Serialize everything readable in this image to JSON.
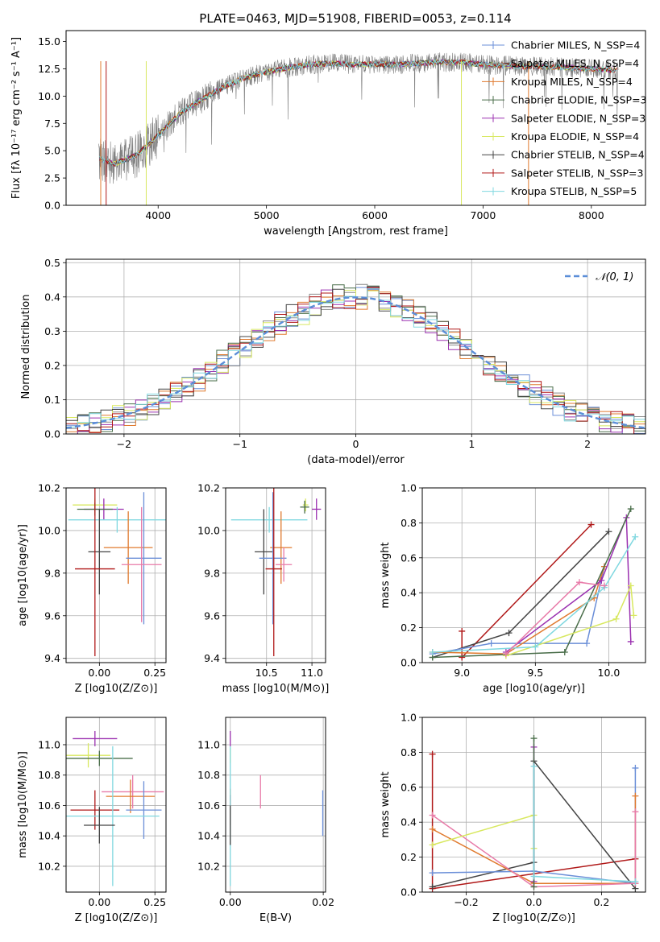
{
  "title": "PLATE=0463, MJD=51908, FIBERID=0053, z=0.114",
  "colors": {
    "chabrier_miles": "#6b8fd8",
    "salpeter_miles": "#8b8b8b",
    "kroupa_miles": "#e07a2e",
    "chabrier_elodie": "#4a6e4a",
    "salpeter_elodie": "#9b30b0",
    "kroupa_elodie": "#d8e860",
    "chabrier_stelib": "#444444",
    "salpeter_stelib": "#b01818",
    "kroupa_stelib": "#80d8e0",
    "pink": "#e87aa8",
    "normal_curve": "#5b8ed8",
    "observed_spectrum": "#7f7f7f"
  },
  "chart_data": [
    {
      "type": "line",
      "panel": "spectrum",
      "title": "PLATE=0463, MJD=51908, FIBERID=0053, z=0.114",
      "xlabel": "wavelength [Angstrom, rest frame]",
      "ylabel": "Flux [fλ 10⁻¹⁷ erg cm⁻² s⁻¹ A⁻¹]",
      "xlim": [
        3150,
        8500
      ],
      "ylim": [
        0,
        16
      ],
      "xticks": [
        4000,
        5000,
        6000,
        7000,
        8000
      ],
      "yticks": [
        "0.0",
        "2.5",
        "5.0",
        "7.5",
        "10.0",
        "12.5",
        "15.0"
      ],
      "legend_position": "top-right",
      "continuum": {
        "x": [
          3450,
          3600,
          3800,
          4000,
          4200,
          4400,
          4600,
          4800,
          5000,
          5200,
          5400,
          5600,
          5800,
          6000,
          6200,
          6400,
          6600,
          6800,
          7000,
          7200,
          7400,
          7600,
          7800,
          8000,
          8200
        ],
        "y": [
          4.3,
          3.8,
          4.6,
          6.4,
          8.4,
          9.7,
          10.8,
          11.7,
          12.2,
          12.6,
          12.9,
          13.0,
          12.9,
          12.9,
          12.9,
          13.0,
          13.1,
          13.1,
          12.9,
          12.8,
          12.7,
          12.7,
          12.6,
          12.5,
          12.4
        ]
      },
      "series": [
        {
          "name": "Chabrier MILES, N_SSP=4",
          "color_key": "chabrier_miles"
        },
        {
          "name": "Salpeter MILES, N_SSP=4",
          "color_key": "salpeter_miles"
        },
        {
          "name": "Kroupa MILES, N_SSP=4",
          "color_key": "kroupa_miles"
        },
        {
          "name": "Chabrier ELODIE, N_SSP=3",
          "color_key": "chabrier_elodie"
        },
        {
          "name": "Salpeter ELODIE, N_SSP=3",
          "color_key": "salpeter_elodie"
        },
        {
          "name": "Kroupa ELODIE, N_SSP=4",
          "color_key": "kroupa_elodie"
        },
        {
          "name": "Chabrier STELIB, N_SSP=4",
          "color_key": "chabrier_stelib"
        },
        {
          "name": "Salpeter STELIB, N_SSP=3",
          "color_key": "salpeter_stelib"
        },
        {
          "name": "Kroupa STELIB, N_SSP=5",
          "color_key": "kroupa_stelib"
        }
      ]
    },
    {
      "type": "line",
      "panel": "residuals",
      "xlabel": "(data-model)/error",
      "ylabel": "Normed distribution",
      "xlim": [
        -2.5,
        2.5
      ],
      "ylim": [
        0,
        0.51
      ],
      "xticks": [
        "−2",
        "−1",
        "0",
        "1",
        "2"
      ],
      "yticks": [
        "0.0",
        "0.1",
        "0.2",
        "0.3",
        "0.4",
        "0.5"
      ],
      "grid": true,
      "legend_position": "top-right",
      "normal_label": "𝒩(0, 1)",
      "bin_width": 0.1,
      "histograms": [
        {
          "color_key": "chabrier_miles",
          "amp": 1.0,
          "seed": 1
        },
        {
          "color_key": "salpeter_miles",
          "amp": 1.01,
          "seed": 2
        },
        {
          "color_key": "kroupa_miles",
          "amp": 0.99,
          "seed": 3
        },
        {
          "color_key": "chabrier_elodie",
          "amp": 1.02,
          "seed": 4
        },
        {
          "color_key": "salpeter_elodie",
          "amp": 1.0,
          "seed": 5
        },
        {
          "color_key": "kroupa_elodie",
          "amp": 0.98,
          "seed": 6
        },
        {
          "color_key": "chabrier_stelib",
          "amp": 1.01,
          "seed": 7
        },
        {
          "color_key": "salpeter_stelib",
          "amp": 1.0,
          "seed": 8
        },
        {
          "color_key": "kroupa_stelib",
          "amp": 0.99,
          "seed": 9
        }
      ]
    },
    {
      "type": "scatter",
      "panel": "age_vs_Z",
      "xlabel": "Z [log10(Z/Z⊙)]",
      "ylabel": "age  [log10(age/yr)]",
      "xlim": [
        -0.15,
        0.3
      ],
      "ylim": [
        9.38,
        10.2
      ],
      "xticks": [
        "0.00",
        "0.25"
      ],
      "yticks": [
        "9.4",
        "9.6",
        "9.8",
        "10.0",
        "10.2"
      ],
      "grid": true,
      "points": [
        {
          "x": -0.02,
          "y": 10.12,
          "xerr": 0.1,
          "yerr": 0.03,
          "color_key": "kroupa_elodie"
        },
        {
          "x": 0.02,
          "y": 10.1,
          "xerr": 0.09,
          "yerr": 0.05,
          "color_key": "salpeter_elodie"
        },
        {
          "x": -0.02,
          "y": 10.1,
          "xerr": 0.08,
          "yerr": 0.03,
          "color_key": "chabrier_elodie"
        },
        {
          "x": 0.08,
          "y": 10.05,
          "xerr": 0.22,
          "yerr": 0.06,
          "color_key": "kroupa_stelib"
        },
        {
          "x": 0.13,
          "y": 9.92,
          "xerr": 0.11,
          "yerr": 0.17,
          "color_key": "kroupa_miles"
        },
        {
          "x": 0.0,
          "y": 9.9,
          "xerr": 0.05,
          "yerr": 0.2,
          "color_key": "chabrier_stelib"
        },
        {
          "x": 0.2,
          "y": 9.87,
          "xerr": 0.08,
          "yerr": 0.31,
          "color_key": "chabrier_miles"
        },
        {
          "x": 0.19,
          "y": 9.84,
          "xerr": 0.09,
          "yerr": 0.27,
          "color_key": "pink"
        },
        {
          "x": -0.02,
          "y": 9.82,
          "xerr": 0.09,
          "yerr": 0.41,
          "color_key": "salpeter_stelib"
        }
      ]
    },
    {
      "type": "scatter",
      "panel": "age_vs_mass",
      "xlabel": "mass [log10(M/M⊙)]",
      "xlim": [
        10.05,
        11.15
      ],
      "ylim": [
        9.38,
        10.2
      ],
      "xticks": [
        "10.5",
        "11.0"
      ],
      "yticks": [
        "9.4",
        "9.6",
        "9.8",
        "10.0",
        "10.2"
      ],
      "grid": true,
      "points": [
        {
          "x": 10.93,
          "y": 10.12,
          "xerr": 0.03,
          "yerr": 0.03,
          "color_key": "kroupa_elodie"
        },
        {
          "x": 11.05,
          "y": 10.1,
          "xerr": 0.05,
          "yerr": 0.05,
          "color_key": "salpeter_elodie"
        },
        {
          "x": 10.92,
          "y": 10.11,
          "xerr": 0.05,
          "yerr": 0.03,
          "color_key": "chabrier_elodie"
        },
        {
          "x": 10.53,
          "y": 10.05,
          "xerr": 0.42,
          "yerr": 0.06,
          "color_key": "kroupa_stelib"
        },
        {
          "x": 10.66,
          "y": 9.92,
          "xerr": 0.12,
          "yerr": 0.17,
          "color_key": "kroupa_miles"
        },
        {
          "x": 10.47,
          "y": 9.9,
          "xerr": 0.1,
          "yerr": 0.2,
          "color_key": "chabrier_stelib"
        },
        {
          "x": 10.57,
          "y": 9.87,
          "xerr": 0.15,
          "yerr": 0.31,
          "color_key": "chabrier_miles"
        },
        {
          "x": 10.69,
          "y": 9.84,
          "xerr": 0.09,
          "yerr": 0.08,
          "color_key": "pink"
        },
        {
          "x": 10.58,
          "y": 9.82,
          "xerr": 0.09,
          "yerr": 0.41,
          "color_key": "salpeter_stelib"
        }
      ]
    },
    {
      "type": "line",
      "panel": "weight_vs_age",
      "xlabel": "age  [log10(age/yr)]",
      "ylabel": "mass weight",
      "xlim": [
        8.73,
        10.25
      ],
      "ylim": [
        0,
        1
      ],
      "xticks": [
        "9.0",
        "9.5",
        "10.0"
      ],
      "yticks": [
        "0.0",
        "0.2",
        "0.4",
        "0.6",
        "0.8",
        "1.0"
      ],
      "grid": true,
      "series": [
        {
          "color_key": "salpeter_stelib",
          "x": [
            9.0,
            9.0,
            9.88
          ],
          "y": [
            0.18,
            0.03,
            0.79
          ]
        },
        {
          "color_key": "chabrier_stelib",
          "x": [
            8.8,
            9.32,
            10.0
          ],
          "y": [
            0.03,
            0.17,
            0.75
          ]
        },
        {
          "color_key": "chabrier_miles",
          "x": [
            8.8,
            9.2,
            9.85,
            9.97
          ],
          "y": [
            0.05,
            0.11,
            0.11,
            0.55
          ]
        },
        {
          "color_key": "kroupa_miles",
          "x": [
            8.8,
            9.3,
            9.9,
            9.97
          ],
          "y": [
            0.06,
            0.05,
            0.37,
            0.55
          ]
        },
        {
          "color_key": "salpeter_elodie",
          "x": [
            9.3,
            9.95,
            10.12,
            10.15
          ],
          "y": [
            0.06,
            0.47,
            0.83,
            0.12
          ]
        },
        {
          "color_key": "chabrier_elodie",
          "x": [
            8.8,
            9.7,
            10.15
          ],
          "y": [
            0.03,
            0.06,
            0.88
          ]
        },
        {
          "color_key": "kroupa_elodie",
          "x": [
            9.3,
            10.05,
            10.15,
            10.17
          ],
          "y": [
            0.04,
            0.25,
            0.44,
            0.27
          ]
        },
        {
          "color_key": "kroupa_stelib",
          "x": [
            8.8,
            9.5,
            9.97,
            10.18
          ],
          "y": [
            0.06,
            0.09,
            0.43,
            0.72
          ]
        },
        {
          "color_key": "pink",
          "x": [
            9.3,
            9.8,
            9.97
          ],
          "y": [
            0.05,
            0.46,
            0.44
          ]
        }
      ]
    },
    {
      "type": "scatter",
      "panel": "mass_vs_Z",
      "xlabel": "Z [log10(Z/Z⊙)]",
      "ylabel": "mass [log10(M/M⊙)]",
      "xlim": [
        -0.15,
        0.3
      ],
      "ylim": [
        10.03,
        11.18
      ],
      "xticks": [
        "0.00",
        "0.25"
      ],
      "yticks": [
        "10.2",
        "10.4",
        "10.6",
        "10.8",
        "11.0"
      ],
      "grid": true,
      "points": [
        {
          "x": -0.02,
          "y": 11.04,
          "xerr": 0.1,
          "yerr": 0.05,
          "color_key": "salpeter_elodie"
        },
        {
          "x": -0.05,
          "y": 10.93,
          "xerr": 0.1,
          "yerr": 0.08,
          "color_key": "kroupa_elodie"
        },
        {
          "x": 0.0,
          "y": 10.91,
          "xerr": 0.15,
          "yerr": 0.05,
          "color_key": "chabrier_elodie"
        },
        {
          "x": 0.15,
          "y": 10.69,
          "xerr": 0.14,
          "yerr": 0.11,
          "color_key": "pink"
        },
        {
          "x": 0.14,
          "y": 10.66,
          "xerr": 0.11,
          "yerr": 0.11,
          "color_key": "kroupa_miles"
        },
        {
          "x": -0.02,
          "y": 10.57,
          "xerr": 0.11,
          "yerr": 0.13,
          "color_key": "salpeter_stelib"
        },
        {
          "x": 0.2,
          "y": 10.57,
          "xerr": 0.08,
          "yerr": 0.19,
          "color_key": "chabrier_miles"
        },
        {
          "x": 0.06,
          "y": 10.53,
          "xerr": 0.21,
          "yerr": 0.46,
          "color_key": "kroupa_stelib"
        },
        {
          "x": 0.0,
          "y": 10.47,
          "xerr": 0.07,
          "yerr": 0.12,
          "color_key": "chabrier_stelib"
        }
      ]
    },
    {
      "type": "scatter",
      "panel": "mass_vs_ebv",
      "xlabel": "E(B-V)",
      "xlim": [
        -0.001,
        0.0205
      ],
      "ylim": [
        10.03,
        11.18
      ],
      "xticks": [
        "0.00",
        "0.02"
      ],
      "yticks": [
        "10.2",
        "10.4",
        "10.6",
        "10.8",
        "11.0"
      ],
      "grid": true,
      "points": [
        {
          "x": 0.0,
          "y": 11.04,
          "yerr": 0.05,
          "color_key": "salpeter_elodie"
        },
        {
          "x": 0.0,
          "y": 10.93,
          "yerr": 0.05,
          "color_key": "kroupa_elodie"
        },
        {
          "x": 0.0065,
          "y": 10.69,
          "yerr": 0.11,
          "color_key": "pink"
        },
        {
          "x": 0.0,
          "y": 10.66,
          "yerr": 0.05,
          "color_key": "kroupa_miles"
        },
        {
          "x": 0.0,
          "y": 10.57,
          "yerr": 0.1,
          "color_key": "salpeter_stelib"
        },
        {
          "x": 0.0199,
          "y": 10.55,
          "yerr": 0.15,
          "color_key": "chabrier_miles"
        },
        {
          "x": 0.0,
          "y": 10.53,
          "yerr": 0.46,
          "color_key": "kroupa_stelib"
        },
        {
          "x": 0.0,
          "y": 10.47,
          "yerr": 0.13,
          "color_key": "chabrier_stelib"
        }
      ]
    },
    {
      "type": "line",
      "panel": "weight_vs_Z",
      "xlabel": "Z [log10(Z/Z⊙)]",
      "ylabel": "mass weight",
      "xlim": [
        -0.33,
        0.33
      ],
      "ylim": [
        0,
        1
      ],
      "xticks": [
        "−0.2",
        "0.0",
        "0.2"
      ],
      "yticks": [
        "0.0",
        "0.2",
        "0.4",
        "0.6",
        "0.8",
        "1.0"
      ],
      "grid": true,
      "series": [
        {
          "color_key": "salpeter_stelib",
          "x": [
            -0.3,
            -0.3,
            0.3
          ],
          "y": [
            0.79,
            0.02,
            0.19
          ]
        },
        {
          "color_key": "chabrier_stelib",
          "x": [
            -0.3,
            0.0,
            0.0,
            0.3
          ],
          "y": [
            0.03,
            0.17,
            0.75,
            0.02
          ]
        },
        {
          "color_key": "chabrier_miles",
          "x": [
            -0.3,
            0.0,
            0.3,
            0.3
          ],
          "y": [
            0.11,
            0.12,
            0.05,
            0.71
          ]
        },
        {
          "color_key": "kroupa_miles",
          "x": [
            -0.3,
            0.0,
            0.3,
            0.3
          ],
          "y": [
            0.36,
            0.05,
            0.05,
            0.55
          ]
        },
        {
          "color_key": "pink",
          "x": [
            -0.3,
            0.0,
            0.3,
            0.3
          ],
          "y": [
            0.44,
            0.03,
            0.05,
            0.46
          ]
        },
        {
          "color_key": "kroupa_elodie",
          "x": [
            -0.3,
            0.0,
            0.0
          ],
          "y": [
            0.27,
            0.44,
            0.25
          ]
        },
        {
          "color_key": "salpeter_elodie",
          "x": [
            0.0,
            0.0
          ],
          "y": [
            0.83,
            0.06
          ]
        },
        {
          "color_key": "chabrier_elodie",
          "x": [
            0.0,
            0.0
          ],
          "y": [
            0.88,
            0.03
          ]
        },
        {
          "color_key": "kroupa_stelib",
          "x": [
            0.0,
            0.0,
            0.3
          ],
          "y": [
            0.72,
            0.09,
            0.06
          ]
        }
      ]
    }
  ]
}
